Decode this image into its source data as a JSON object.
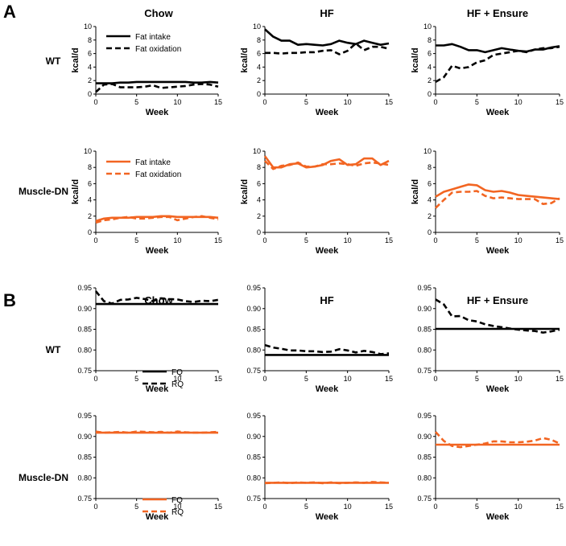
{
  "panels": {
    "A": "A",
    "B": "B"
  },
  "columns": [
    "Chow",
    "HF",
    "HF + Ensure"
  ],
  "rows": [
    "WT",
    "Muscle-DN"
  ],
  "colors": {
    "WT": "#000000",
    "Muscle-DN": "#f26522"
  },
  "chart_data": [
    {
      "panel": "A",
      "type": "line",
      "xlabel": "Week",
      "ylabel": "kcal/d",
      "xlim": [
        0,
        15
      ],
      "ylim": [
        0,
        10
      ],
      "xticks": [
        0,
        5,
        10,
        15
      ],
      "yticks": [
        0,
        2,
        4,
        6,
        8,
        10
      ],
      "legend": [
        "Fat intake",
        "Fat oxidation"
      ],
      "x": [
        0,
        1,
        2,
        3,
        4,
        5,
        6,
        7,
        8,
        9,
        10,
        11,
        12,
        13,
        14,
        15
      ],
      "cells": [
        {
          "row": "WT",
          "col": "Chow",
          "series": [
            {
              "name": "Fat intake",
              "style": "solid",
              "values": [
                1.6,
                1.6,
                1.6,
                1.7,
                1.7,
                1.8,
                1.8,
                1.8,
                1.8,
                1.8,
                1.8,
                1.8,
                1.7,
                1.7,
                1.8,
                1.7
              ]
            },
            {
              "name": "Fat oxidation",
              "style": "dashed",
              "values": [
                0.3,
                1.4,
                1.5,
                1.0,
                1.0,
                1.0,
                1.1,
                1.3,
                0.9,
                1.0,
                1.1,
                1.2,
                1.4,
                1.5,
                1.4,
                1.1
              ]
            }
          ]
        },
        {
          "row": "WT",
          "col": "HF",
          "series": [
            {
              "name": "Fat intake",
              "style": "solid",
              "values": [
                9.6,
                8.5,
                7.9,
                7.9,
                7.3,
                7.4,
                7.3,
                7.2,
                7.4,
                7.9,
                7.6,
                7.4,
                7.9,
                7.6,
                7.3,
                7.5
              ]
            },
            {
              "name": "Fat oxidation",
              "style": "dashed",
              "values": [
                6.1,
                6.1,
                6.0,
                6.1,
                6.1,
                6.2,
                6.2,
                6.4,
                6.5,
                5.9,
                6.4,
                7.5,
                6.5,
                7.0,
                7.0,
                6.7
              ]
            }
          ]
        },
        {
          "row": "WT",
          "col": "HF + Ensure",
          "series": [
            {
              "name": "Fat intake",
              "style": "solid",
              "values": [
                7.2,
                7.2,
                7.4,
                7.0,
                6.5,
                6.5,
                6.2,
                6.5,
                6.8,
                6.6,
                6.4,
                6.3,
                6.6,
                6.6,
                6.9,
                7.1
              ]
            },
            {
              "name": "Fat oxidation",
              "style": "dashed",
              "values": [
                1.8,
                2.5,
                4.2,
                3.8,
                4.0,
                4.7,
                5.0,
                5.8,
                6.0,
                6.2,
                6.4,
                6.2,
                6.6,
                6.8,
                6.8,
                7.0
              ]
            }
          ]
        },
        {
          "row": "Muscle-DN",
          "col": "Chow",
          "series": [
            {
              "name": "Fat intake",
              "style": "solid",
              "values": [
                1.4,
                1.7,
                1.8,
                1.8,
                1.8,
                1.9,
                1.9,
                1.9,
                2.0,
                2.0,
                1.9,
                1.9,
                1.9,
                1.9,
                1.9,
                1.8
              ]
            },
            {
              "name": "Fat oxidation",
              "style": "dashed",
              "values": [
                1.2,
                1.5,
                1.6,
                1.8,
                1.9,
                1.7,
                1.7,
                1.8,
                1.9,
                1.9,
                1.5,
                1.7,
                1.9,
                2.0,
                1.8,
                1.6
              ]
            }
          ]
        },
        {
          "row": "Muscle-DN",
          "col": "HF",
          "series": [
            {
              "name": "Fat intake",
              "style": "solid",
              "values": [
                9.4,
                8.0,
                8.0,
                8.4,
                8.5,
                8.0,
                8.1,
                8.3,
                8.8,
                9.0,
                8.3,
                8.4,
                9.1,
                9.1,
                8.3,
                8.8
              ]
            },
            {
              "name": "Fat oxidation",
              "style": "dashed",
              "values": [
                8.8,
                7.8,
                8.2,
                8.3,
                8.6,
                8.1,
                8.1,
                8.4,
                8.4,
                8.5,
                8.4,
                8.2,
                8.5,
                8.6,
                8.5,
                8.3
              ]
            }
          ]
        },
        {
          "row": "Muscle-DN",
          "col": "HF + Ensure",
          "series": [
            {
              "name": "Fat intake",
              "style": "solid",
              "values": [
                4.4,
                5.0,
                5.3,
                5.6,
                5.9,
                5.8,
                5.2,
                5.0,
                5.1,
                4.9,
                4.6,
                4.5,
                4.4,
                4.3,
                4.2,
                4.1
              ]
            },
            {
              "name": "Fat oxidation",
              "style": "dashed",
              "values": [
                3.0,
                4.0,
                4.9,
                5.0,
                5.0,
                5.1,
                4.5,
                4.2,
                4.3,
                4.2,
                4.1,
                4.1,
                4.1,
                3.5,
                3.6,
                4.2
              ]
            }
          ]
        }
      ]
    },
    {
      "panel": "B",
      "type": "line",
      "xlabel": "Week",
      "ylabel": "",
      "xlim": [
        0,
        15
      ],
      "ylim": [
        0.75,
        0.95
      ],
      "xticks": [
        0,
        5,
        10,
        15
      ],
      "yticks": [
        0.75,
        0.8,
        0.85,
        0.9,
        0.95
      ],
      "ytick_labels": [
        "0.75",
        "0.80",
        "0.85",
        "0.90",
        "0.95"
      ],
      "legend": [
        "FQ",
        "RQ"
      ],
      "x": [
        0,
        1,
        2,
        3,
        4,
        5,
        6,
        7,
        8,
        9,
        10,
        11,
        12,
        13,
        14,
        15
      ],
      "cells": [
        {
          "row": "WT",
          "col": "Chow",
          "series": [
            {
              "name": "FQ",
              "style": "solid",
              "values": [
                0.911,
                0.911,
                0.911,
                0.911,
                0.911,
                0.911,
                0.911,
                0.911,
                0.911,
                0.911,
                0.911,
                0.911,
                0.911,
                0.911,
                0.911,
                0.911
              ]
            },
            {
              "name": "RQ",
              "style": "dashed",
              "values": [
                0.942,
                0.918,
                0.912,
                0.921,
                0.922,
                0.926,
                0.923,
                0.918,
                0.925,
                0.923,
                0.922,
                0.918,
                0.916,
                0.919,
                0.918,
                0.921
              ]
            }
          ]
        },
        {
          "row": "WT",
          "col": "HF",
          "series": [
            {
              "name": "FQ",
              "style": "solid",
              "values": [
                0.788,
                0.788,
                0.788,
                0.788,
                0.788,
                0.788,
                0.788,
                0.788,
                0.788,
                0.788,
                0.788,
                0.788,
                0.788,
                0.788,
                0.788,
                0.788
              ]
            },
            {
              "name": "RQ",
              "style": "dashed",
              "values": [
                0.812,
                0.806,
                0.803,
                0.799,
                0.799,
                0.797,
                0.797,
                0.795,
                0.796,
                0.802,
                0.799,
                0.794,
                0.798,
                0.795,
                0.79,
                0.792
              ]
            }
          ]
        },
        {
          "row": "WT",
          "col": "HF + Ensure",
          "series": [
            {
              "name": "FQ",
              "style": "solid",
              "values": [
                0.851,
                0.851,
                0.851,
                0.851,
                0.851,
                0.851,
                0.851,
                0.851,
                0.851,
                0.851,
                0.851,
                0.851,
                0.851,
                0.851,
                0.851,
                0.851
              ]
            },
            {
              "name": "RQ",
              "style": "dashed",
              "values": [
                0.922,
                0.91,
                0.881,
                0.882,
                0.872,
                0.869,
                0.862,
                0.858,
                0.855,
                0.852,
                0.849,
                0.847,
                0.846,
                0.842,
                0.845,
                0.849
              ]
            }
          ]
        },
        {
          "row": "Muscle-DN",
          "col": "Chow",
          "series": [
            {
              "name": "FQ",
              "style": "solid",
              "values": [
                0.909,
                0.909,
                0.909,
                0.909,
                0.909,
                0.909,
                0.909,
                0.909,
                0.909,
                0.909,
                0.909,
                0.909,
                0.909,
                0.909,
                0.909,
                0.909
              ]
            },
            {
              "name": "RQ",
              "style": "dashed",
              "values": [
                0.912,
                0.909,
                0.91,
                0.911,
                0.909,
                0.912,
                0.911,
                0.91,
                0.911,
                0.909,
                0.912,
                0.91,
                0.909,
                0.909,
                0.91,
                0.911
              ]
            }
          ]
        },
        {
          "row": "Muscle-DN",
          "col": "HF",
          "series": [
            {
              "name": "FQ",
              "style": "solid",
              "values": [
                0.788,
                0.788,
                0.788,
                0.788,
                0.788,
                0.788,
                0.788,
                0.788,
                0.788,
                0.788,
                0.788,
                0.788,
                0.788,
                0.788,
                0.788,
                0.788
              ]
            },
            {
              "name": "RQ",
              "style": "dashed",
              "values": [
                0.787,
                0.788,
                0.789,
                0.787,
                0.789,
                0.788,
                0.789,
                0.787,
                0.789,
                0.787,
                0.788,
                0.789,
                0.788,
                0.79,
                0.789,
                0.788
              ]
            }
          ]
        },
        {
          "row": "Muscle-DN",
          "col": "HF + Ensure",
          "series": [
            {
              "name": "FQ",
              "style": "solid",
              "values": [
                0.88,
                0.88,
                0.88,
                0.88,
                0.88,
                0.88,
                0.88,
                0.88,
                0.88,
                0.88,
                0.88,
                0.88,
                0.88,
                0.88,
                0.88,
                0.88
              ]
            },
            {
              "name": "RQ",
              "style": "dashed",
              "values": [
                0.911,
                0.889,
                0.877,
                0.874,
                0.877,
                0.88,
                0.883,
                0.888,
                0.888,
                0.886,
                0.886,
                0.887,
                0.89,
                0.896,
                0.892,
                0.883
              ]
            }
          ]
        }
      ]
    }
  ]
}
